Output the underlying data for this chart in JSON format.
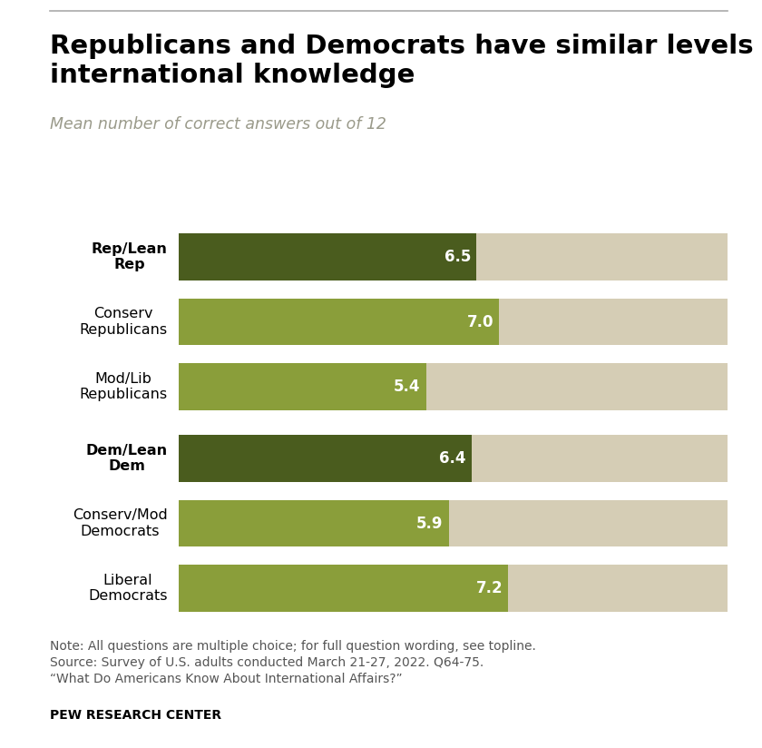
{
  "title": "Republicans and Democrats have similar levels of\ninternational knowledge",
  "subtitle": "Mean number of correct answers out of 12",
  "categories": [
    "Rep/Lean\nRep",
    "Conserv\nRepublicans",
    "Mod/Lib\nRepublicans",
    "Dem/Lean\nDem",
    "Conserv/Mod\nDemocrats",
    "Liberal\nDemocrats"
  ],
  "values": [
    6.5,
    7.0,
    5.4,
    6.4,
    5.9,
    7.2
  ],
  "max_value": 12,
  "bar_colors": [
    "#4a5c1e",
    "#8a9e3a",
    "#8a9e3a",
    "#4a5c1e",
    "#8a9e3a",
    "#8a9e3a"
  ],
  "bold_labels": [
    true,
    false,
    false,
    true,
    false,
    false
  ],
  "background_color": "#d5cdb5",
  "note_text": "Note: All questions are multiple choice; for full question wording, see topline.\nSource: Survey of U.S. adults conducted March 21-27, 2022. Q64-75.\n“What Do Americans Know About International Affairs?”",
  "source_label": "PEW RESEARCH CENTER",
  "title_fontsize": 21,
  "subtitle_fontsize": 12.5,
  "label_fontsize": 11.5,
  "value_fontsize": 12,
  "note_fontsize": 10
}
